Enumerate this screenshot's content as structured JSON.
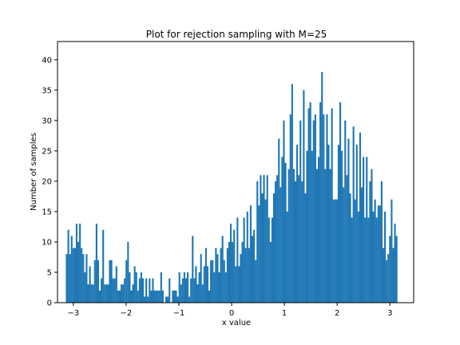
{
  "chart_data": {
    "type": "bar",
    "title": "Plot for rejection sampling with M=25",
    "xlabel": "x value",
    "ylabel": "Number of samples",
    "xlim": [
      -3.3,
      3.45
    ],
    "ylim": [
      0,
      43
    ],
    "xticks": [
      -3,
      -2,
      -1,
      0,
      1,
      2,
      3
    ],
    "yticks": [
      0,
      5,
      10,
      15,
      20,
      25,
      30,
      35,
      40
    ],
    "grid": false,
    "bar_color": "#1f77b4",
    "bin_range": [
      -3.14159,
      3.14159
    ],
    "bin_count": 200,
    "profile": [
      [
        -3.14,
        6.5
      ],
      [
        -3.0,
        7.5
      ],
      [
        -2.8,
        6.0
      ],
      [
        -2.5,
        4.5
      ],
      [
        -2.2,
        4.0
      ],
      [
        -2.0,
        3.8
      ],
      [
        -1.8,
        3.5
      ],
      [
        -1.5,
        3.0
      ],
      [
        -1.2,
        2.8
      ],
      [
        -1.0,
        3.0
      ],
      [
        -0.8,
        3.8
      ],
      [
        -0.5,
        5.5
      ],
      [
        -0.2,
        6.5
      ],
      [
        0.0,
        9.5
      ],
      [
        0.2,
        10.5
      ],
      [
        0.4,
        12.5
      ],
      [
        0.6,
        15.0
      ],
      [
        0.8,
        17.5
      ],
      [
        1.0,
        20.0
      ],
      [
        1.2,
        23.0
      ],
      [
        1.4,
        24.0
      ],
      [
        1.6,
        24.5
      ],
      [
        1.8,
        24.5
      ],
      [
        2.0,
        22.5
      ],
      [
        2.2,
        21.0
      ],
      [
        2.4,
        18.5
      ],
      [
        2.6,
        16.0
      ],
      [
        2.8,
        13.5
      ],
      [
        3.0,
        11.5
      ],
      [
        3.14,
        10.0
      ]
    ],
    "spikes": [
      [
        -3.1,
        12
      ],
      [
        -3.02,
        11
      ],
      [
        -2.95,
        13
      ],
      [
        -2.88,
        13
      ],
      [
        -2.55,
        13
      ],
      [
        -2.45,
        12
      ],
      [
        -1.95,
        10
      ],
      [
        -0.75,
        11
      ],
      [
        0.5,
        20
      ],
      [
        0.55,
        21
      ],
      [
        0.85,
        21
      ],
      [
        0.9,
        27
      ],
      [
        0.95,
        24
      ],
      [
        1.0,
        30
      ],
      [
        1.1,
        31
      ],
      [
        1.15,
        36
      ],
      [
        1.3,
        30
      ],
      [
        1.38,
        35
      ],
      [
        1.5,
        33
      ],
      [
        1.6,
        31
      ],
      [
        1.68,
        33
      ],
      [
        1.72,
        38
      ],
      [
        1.8,
        31
      ],
      [
        1.9,
        32
      ],
      [
        2.05,
        33
      ],
      [
        2.15,
        30
      ],
      [
        2.3,
        29
      ],
      [
        2.45,
        28
      ],
      [
        2.55,
        24
      ],
      [
        2.65,
        22
      ],
      [
        2.85,
        20
      ],
      [
        3.02,
        17
      ]
    ]
  }
}
